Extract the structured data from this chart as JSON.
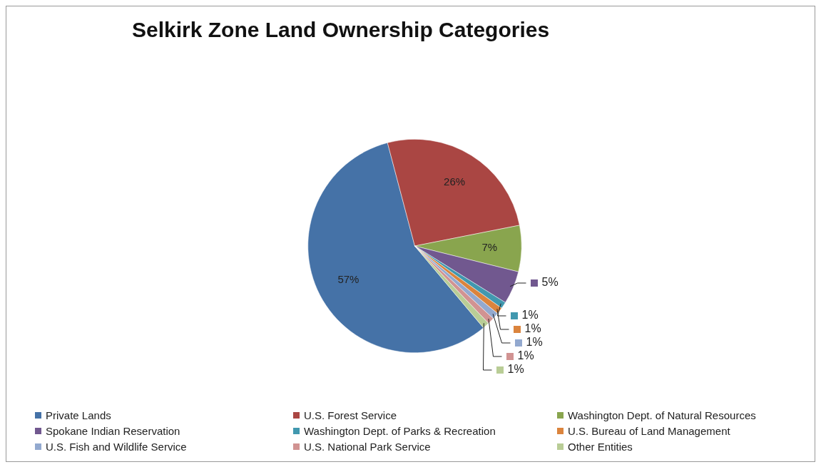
{
  "chart_data": {
    "type": "pie",
    "title": "Selkirk Zone Land Ownership Categories",
    "categories": [
      "Private Lands",
      "U.S. Forest Service",
      "Washington Dept. of Natural Resources",
      "Spokane Indian Reservation",
      "Washington Dept. of Parks & Recreation",
      "U.S. Bureau of Land Management",
      "U.S. Fish and Wildlife Service",
      "U.S. National Park Service",
      "Other Entities"
    ],
    "values": [
      57,
      26,
      7,
      5,
      1,
      1,
      1,
      1,
      1
    ],
    "value_labels": [
      "57%",
      "26%",
      "7%",
      "5%",
      "1%",
      "1%",
      "1%",
      "1%",
      "1%"
    ],
    "colors": [
      "#4572a7",
      "#aa4643",
      "#89a54e",
      "#71588f",
      "#4198af",
      "#db843d",
      "#93a9cf",
      "#d19392",
      "#b9cd96"
    ],
    "legend": "bottom"
  }
}
